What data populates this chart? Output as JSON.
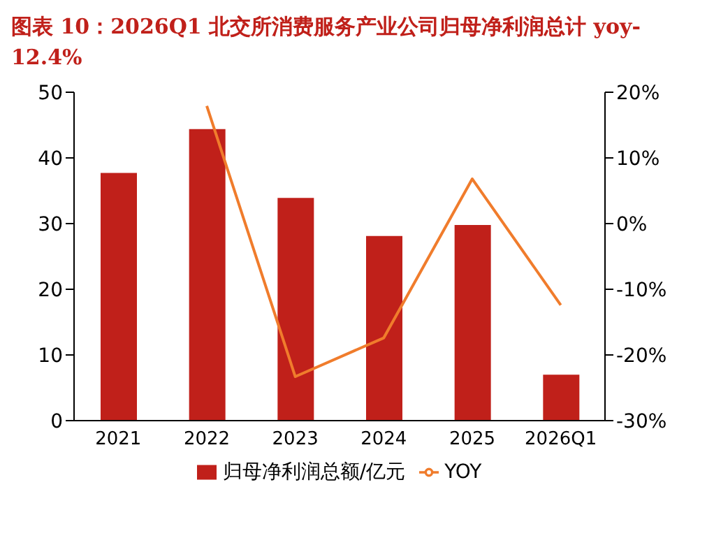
{
  "chart_data": {
    "type": "bar",
    "title": "图表 10：2026Q1 北交所消费服务产业公司归母净利润总计 yoy-12.4%",
    "categories": [
      "2021",
      "2022",
      "2023",
      "2024",
      "2025",
      "2026Q1"
    ],
    "series": [
      {
        "name": "归母净利润总额/亿元",
        "color": "#c0201a",
        "values": [
          37.7,
          44.4,
          33.9,
          28.1,
          29.8,
          7.0
        ]
      },
      {
        "name": "YOY",
        "type": "line",
        "axis": "y2",
        "color": "#f07c2c",
        "values": [
          null,
          17.9,
          -23.3,
          -17.4,
          6.8,
          -12.4
        ]
      }
    ],
    "ylim": [
      0,
      50
    ],
    "yticks": [
      0,
      10,
      20,
      30,
      40,
      50
    ],
    "y2lim": [
      -30,
      20
    ],
    "y2ticks": [
      {
        "value": -30,
        "label": "-30%"
      },
      {
        "value": -20,
        "label": "-20%"
      },
      {
        "value": -10,
        "label": "-10%"
      },
      {
        "value": 0,
        "label": "0%"
      },
      {
        "value": 10,
        "label": "10%"
      },
      {
        "value": 20,
        "label": "20%"
      }
    ],
    "grid": false,
    "legend": "bottom",
    "marker": "none"
  }
}
